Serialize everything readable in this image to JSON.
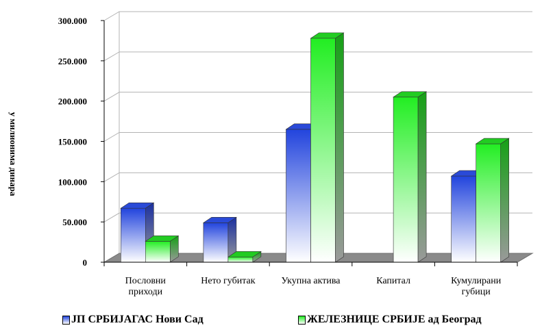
{
  "chart_data": {
    "type": "bar",
    "ylabel": "у милионима динара",
    "ylim": [
      0,
      300000
    ],
    "yticks": [
      "0",
      "50.000",
      "100.000",
      "150.000",
      "200.000",
      "250.000",
      "300.000"
    ],
    "ytick_values": [
      0,
      50000,
      100000,
      150000,
      200000,
      250000,
      300000
    ],
    "grid": true,
    "legend_position": "bottom",
    "categories": [
      [
        "Пословни",
        "приходи"
      ],
      [
        "Нето губитак"
      ],
      [
        "Укупна актива"
      ],
      [
        "Капитал"
      ],
      [
        "Кумулирани",
        "губици"
      ]
    ],
    "series": [
      {
        "name": "ЈП СРБИЈАГАС Нови Сад",
        "color": "#1f3fd8",
        "values": [
          67000,
          49000,
          165000,
          0,
          107000
        ]
      },
      {
        "name": "ЖЕЛЕЗНИЦЕ СРБИЈЕ ад Београд",
        "color": "#1fd81f",
        "values": [
          26000,
          6500,
          278000,
          205000,
          147000
        ]
      }
    ]
  }
}
